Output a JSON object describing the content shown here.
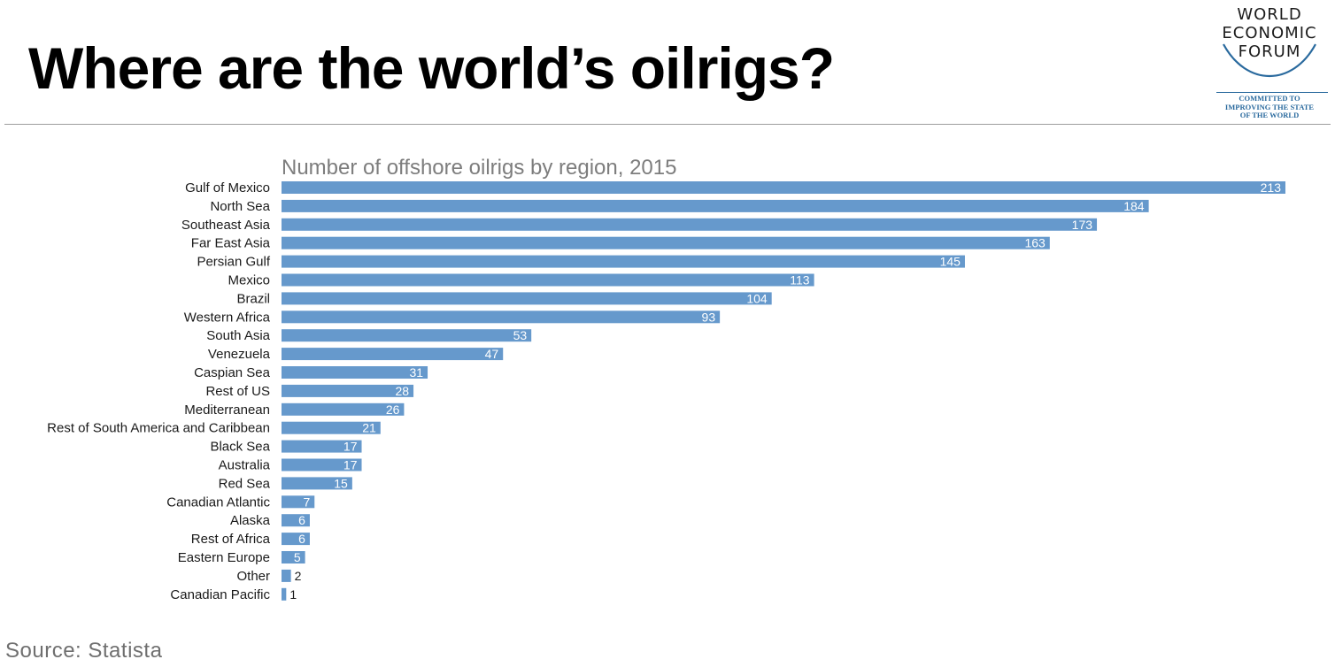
{
  "header": {
    "title": "Where are the world’s oilrigs?"
  },
  "logo": {
    "lines": [
      "WORLD",
      "ECONOMIC",
      "FORUM"
    ],
    "tagline": [
      "COMMITTED TO",
      "IMPROVING THE STATE",
      "OF THE WORLD"
    ],
    "color": "#2a6a9e"
  },
  "footer": {
    "source": "Source: Statista"
  },
  "chart_data": {
    "type": "bar",
    "orientation": "horizontal",
    "title": "Number of offshore oilrigs by region, 2015",
    "xlabel": "",
    "ylabel": "",
    "xlim": [
      0,
      213
    ],
    "grid": false,
    "bar_color": "#6699cc",
    "categories": [
      "Gulf of Mexico",
      "North Sea",
      "Southeast Asia",
      "Far East Asia",
      "Persian Gulf",
      "Mexico",
      "Brazil",
      "Western Africa",
      "South Asia",
      "Venezuela",
      "Caspian Sea",
      "Rest of US",
      "Mediterranean",
      "Rest of South America and Caribbean",
      "Black Sea",
      "Australia",
      "Red Sea",
      "Canadian Atlantic",
      "Alaska",
      "Rest of Africa",
      "Eastern Europe",
      "Other",
      "Canadian Pacific"
    ],
    "values": [
      213,
      184,
      173,
      163,
      145,
      113,
      104,
      93,
      53,
      47,
      31,
      28,
      26,
      21,
      17,
      17,
      15,
      7,
      6,
      6,
      5,
      2,
      1
    ]
  }
}
